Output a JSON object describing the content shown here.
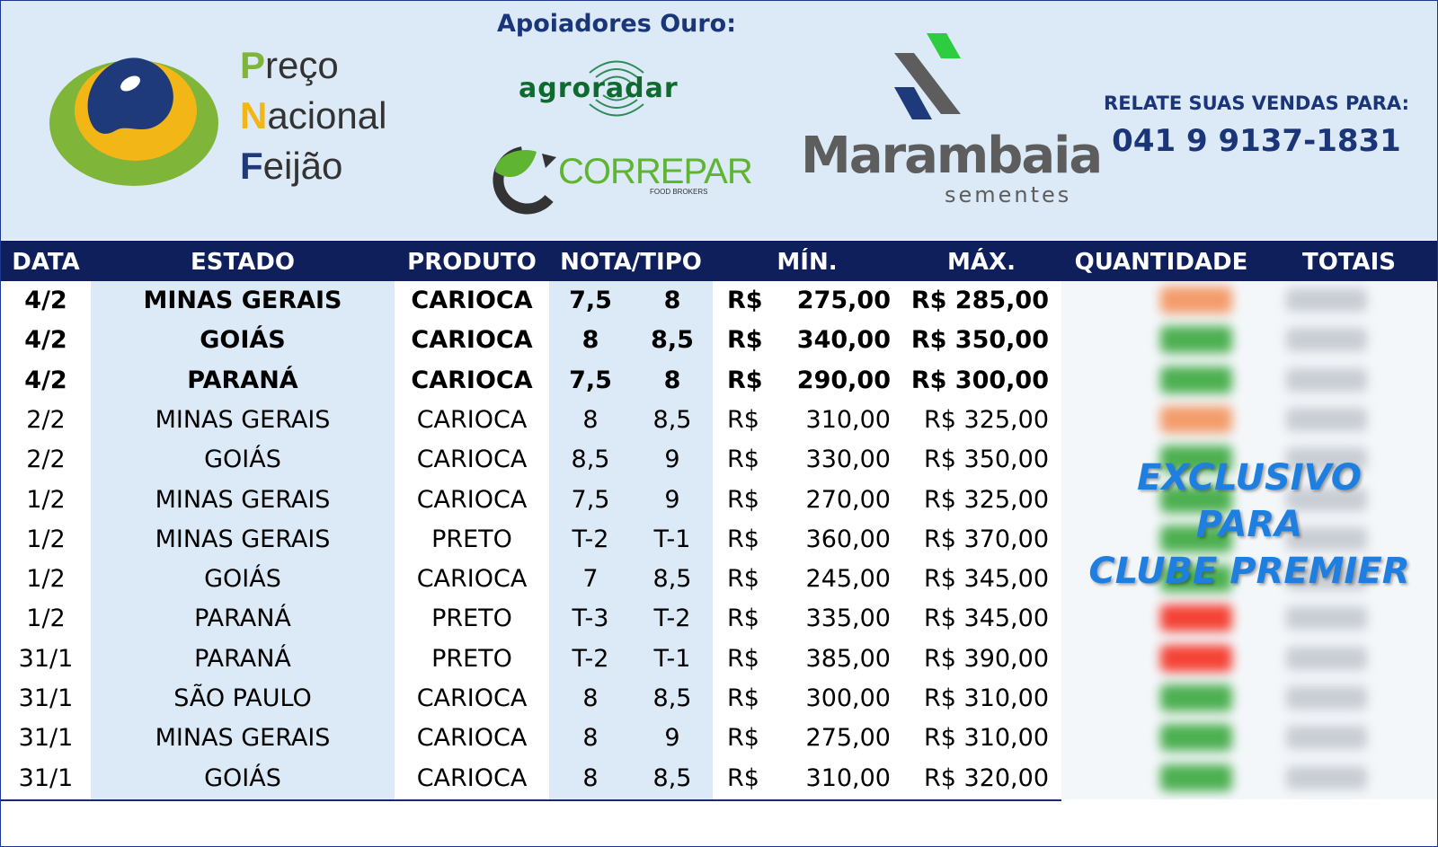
{
  "header": {
    "logo_lines": [
      {
        "initial": "P",
        "rest": "reço"
      },
      {
        "initial": "N",
        "rest": "acional"
      },
      {
        "initial": "F",
        "rest": "eijão"
      }
    ],
    "sponsors_title": "Apoiadores Ouro:",
    "sponsor_agroradar": "agroradar",
    "sponsor_correpar": "CORREPAR",
    "sponsor_correpar_sub": "FOOD BROKERS",
    "sponsor_marambaia": "Marambaia",
    "sponsor_marambaia_sub": "sementes",
    "contact_label": "RELATE SUAS VENDAS PARA:",
    "contact_phone": "041 9 9137-1831"
  },
  "table": {
    "columns": {
      "data": "DATA",
      "estado": "ESTADO",
      "produto": "PRODUTO",
      "nota": "NOTA/TIPO",
      "min": "MÍN.",
      "max": "MÁX.",
      "quantidade": "QUANTIDADE",
      "totais": "TOTAIS"
    },
    "rows": [
      {
        "data": "4/2",
        "estado": "MINAS GERAIS",
        "produto": "CARIOCA",
        "nota1": "7,5",
        "nota2": "8",
        "cur": "R$",
        "min": "275,00",
        "max": "R$ 285,00",
        "bold": true
      },
      {
        "data": "4/2",
        "estado": "GOIÁS",
        "produto": "CARIOCA",
        "nota1": "8",
        "nota2": "8,5",
        "cur": "R$",
        "min": "340,00",
        "max": "R$ 350,00",
        "bold": true
      },
      {
        "data": "4/2",
        "estado": "PARANÁ",
        "produto": "CARIOCA",
        "nota1": "7,5",
        "nota2": "8",
        "cur": "R$",
        "min": "290,00",
        "max": "R$ 300,00",
        "bold": true
      },
      {
        "data": "2/2",
        "estado": "MINAS GERAIS",
        "produto": "CARIOCA",
        "nota1": "8",
        "nota2": "8,5",
        "cur": "R$",
        "min": "310,00",
        "max": "R$ 325,00",
        "bold": false
      },
      {
        "data": "2/2",
        "estado": "GOIÁS",
        "produto": "CARIOCA",
        "nota1": "8,5",
        "nota2": "9",
        "cur": "R$",
        "min": "330,00",
        "max": "R$ 350,00",
        "bold": false
      },
      {
        "data": "1/2",
        "estado": "MINAS GERAIS",
        "produto": "CARIOCA",
        "nota1": "7,5",
        "nota2": "9",
        "cur": "R$",
        "min": "270,00",
        "max": "R$ 325,00",
        "bold": false
      },
      {
        "data": "1/2",
        "estado": "MINAS GERAIS",
        "produto": "PRETO",
        "nota1": "T-2",
        "nota2": "T-1",
        "cur": "R$",
        "min": "360,00",
        "max": "R$ 370,00",
        "bold": false
      },
      {
        "data": "1/2",
        "estado": "GOIÁS",
        "produto": "CARIOCA",
        "nota1": "7",
        "nota2": "8,5",
        "cur": "R$",
        "min": "245,00",
        "max": "R$ 345,00",
        "bold": false
      },
      {
        "data": "1/2",
        "estado": "PARANÁ",
        "produto": "PRETO",
        "nota1": "T-3",
        "nota2": "T-2",
        "cur": "R$",
        "min": "335,00",
        "max": "R$ 345,00",
        "bold": false
      },
      {
        "data": "31/1",
        "estado": "PARANÁ",
        "produto": "PRETO",
        "nota1": "T-2",
        "nota2": "T-1",
        "cur": "R$",
        "min": "385,00",
        "max": "R$ 390,00",
        "bold": false
      },
      {
        "data": "31/1",
        "estado": "SÃO PAULO",
        "produto": "CARIOCA",
        "nota1": "8",
        "nota2": "8,5",
        "cur": "R$",
        "min": "300,00",
        "max": "R$ 310,00",
        "bold": false
      },
      {
        "data": "31/1",
        "estado": "MINAS GERAIS",
        "produto": "CARIOCA",
        "nota1": "8",
        "nota2": "9",
        "cur": "R$",
        "min": "275,00",
        "max": "R$ 310,00",
        "bold": false
      },
      {
        "data": "31/1",
        "estado": "GOIÁS",
        "produto": "CARIOCA",
        "nota1": "8",
        "nota2": "8,5",
        "cur": "R$",
        "min": "310,00",
        "max": "R$ 320,00",
        "bold": false
      }
    ]
  },
  "overlay": {
    "line1": "EXCLUSIVO",
    "line2": "PARA",
    "line3": "CLUBE PREMIER"
  },
  "colors": {
    "header_bg": "#dce9f6",
    "table_header_bg": "#0f1f5c",
    "light_column_bg": "#dce9f6",
    "title_blue": "#1a3578",
    "overlay_blue": "#1f7fe0"
  }
}
